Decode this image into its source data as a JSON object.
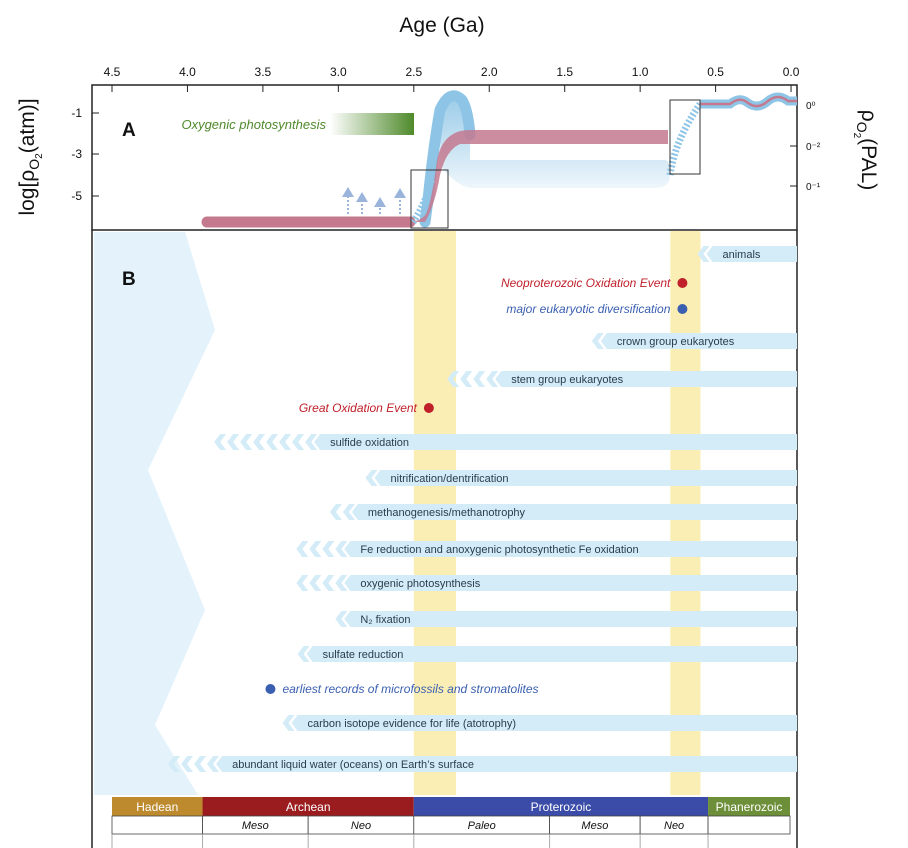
{
  "chart_data": {
    "type": "timeline",
    "title": "Age (Ga)",
    "x_axis": {
      "label": "Age (Ga)",
      "ticks": [
        "4.5",
        "4.0",
        "3.5",
        "3.0",
        "2.5",
        "2.0",
        "1.5",
        "1.0",
        "0.5",
        "0.0"
      ],
      "range": [
        4.5,
        0.0
      ],
      "reversed": true
    },
    "panel_a": {
      "letter": "A",
      "y_left_label_parts": [
        "log[ρ",
        "O",
        "2",
        "(atm)]"
      ],
      "y_left_ticks": [
        "-1",
        "-3",
        "-5"
      ],
      "y_right_label_parts": [
        "ρ",
        "O",
        "2",
        "(PAL)"
      ],
      "y_right_ticks": [
        "0⁰",
        "0⁻²",
        "0⁻¹"
      ],
      "oxygenic_label": "Oxygenic photosynthesis",
      "oxygenic_range": [
        2.5,
        3.1
      ],
      "colors": {
        "low_estimate": "#c4798f",
        "high_estimate": "#8ec5e6",
        "green": "#4f8a2b"
      }
    },
    "panel_b": {
      "letter": "B",
      "shaded_intervals_ga": [
        [
          2.5,
          2.22
        ],
        [
          0.8,
          0.6
        ]
      ],
      "events": [
        {
          "label": "Neoproterozoic Oxidation Event",
          "age": 0.72,
          "color": "#c0202a"
        },
        {
          "label": "major eukaryotic diversification",
          "age": 0.72,
          "color": "#3a5fb0"
        },
        {
          "label": "Great Oxidation Event",
          "age": 2.4,
          "color": "#c0202a"
        },
        {
          "label": "earliest records of microfossils and stromatolites",
          "age": 3.45,
          "color": "#3a5fb0"
        }
      ],
      "bars": [
        {
          "label": "animals",
          "start_ga": 0.6,
          "fuzzy": 1
        },
        {
          "label": "crown group eukaryotes",
          "start_ga": 1.3,
          "fuzzy": 1
        },
        {
          "label": "stem group eukaryotes",
          "start_ga": 2.0,
          "fuzzy": 4
        },
        {
          "label": "sulfide oxidation",
          "start_ga": 3.2,
          "fuzzy": 8
        },
        {
          "label": "nitrification/dentrification",
          "start_ga": 2.8,
          "fuzzy": 1
        },
        {
          "label": "methanogenesis/methanotrophy",
          "start_ga": 2.95,
          "fuzzy": 2
        },
        {
          "label": "Fe reduction and anoxygenic photosynthetic Fe oxidation",
          "start_ga": 3.0,
          "fuzzy": 4
        },
        {
          "label": "oxygenic photosynthesis",
          "start_ga": 3.0,
          "fuzzy": 4
        },
        {
          "label": "N₂ fixation",
          "start_ga": 3.0,
          "fuzzy": 1
        },
        {
          "label": "sulfate reduction",
          "start_ga": 3.25,
          "fuzzy": 1
        },
        {
          "label": "carbon isotope evidence for life (atotrophy)",
          "start_ga": 3.35,
          "fuzzy": 1
        },
        {
          "label": "abundant liquid water (oceans) on Earth’s surface",
          "start_ga": 3.85,
          "fuzzy": 4
        }
      ]
    },
    "eons": [
      {
        "name": "Hadean",
        "start": 4.5,
        "end": 3.9,
        "color": "#bd8a2e"
      },
      {
        "name": "Archean",
        "start": 3.9,
        "end": 2.5,
        "color": "#9b1c1f"
      },
      {
        "name": "Proterozoic",
        "start": 2.5,
        "end": 0.55,
        "color": "#3a4ca8"
      },
      {
        "name": "Phanerozoic",
        "start": 0.55,
        "end": 0.0,
        "color": "#6e8f3a"
      }
    ],
    "eras": [
      {
        "name": "",
        "start": 4.5,
        "end": 3.9
      },
      {
        "name": "Meso",
        "start": 3.9,
        "end": 3.2
      },
      {
        "name": "Neo",
        "start": 3.2,
        "end": 2.5
      },
      {
        "name": "Paleo",
        "start": 2.5,
        "end": 1.6
      },
      {
        "name": "Meso",
        "start": 1.6,
        "end": 1.0
      },
      {
        "name": "Neo",
        "start": 1.0,
        "end": 0.55
      },
      {
        "name": "",
        "start": 0.55,
        "end": 0.0
      }
    ]
  }
}
